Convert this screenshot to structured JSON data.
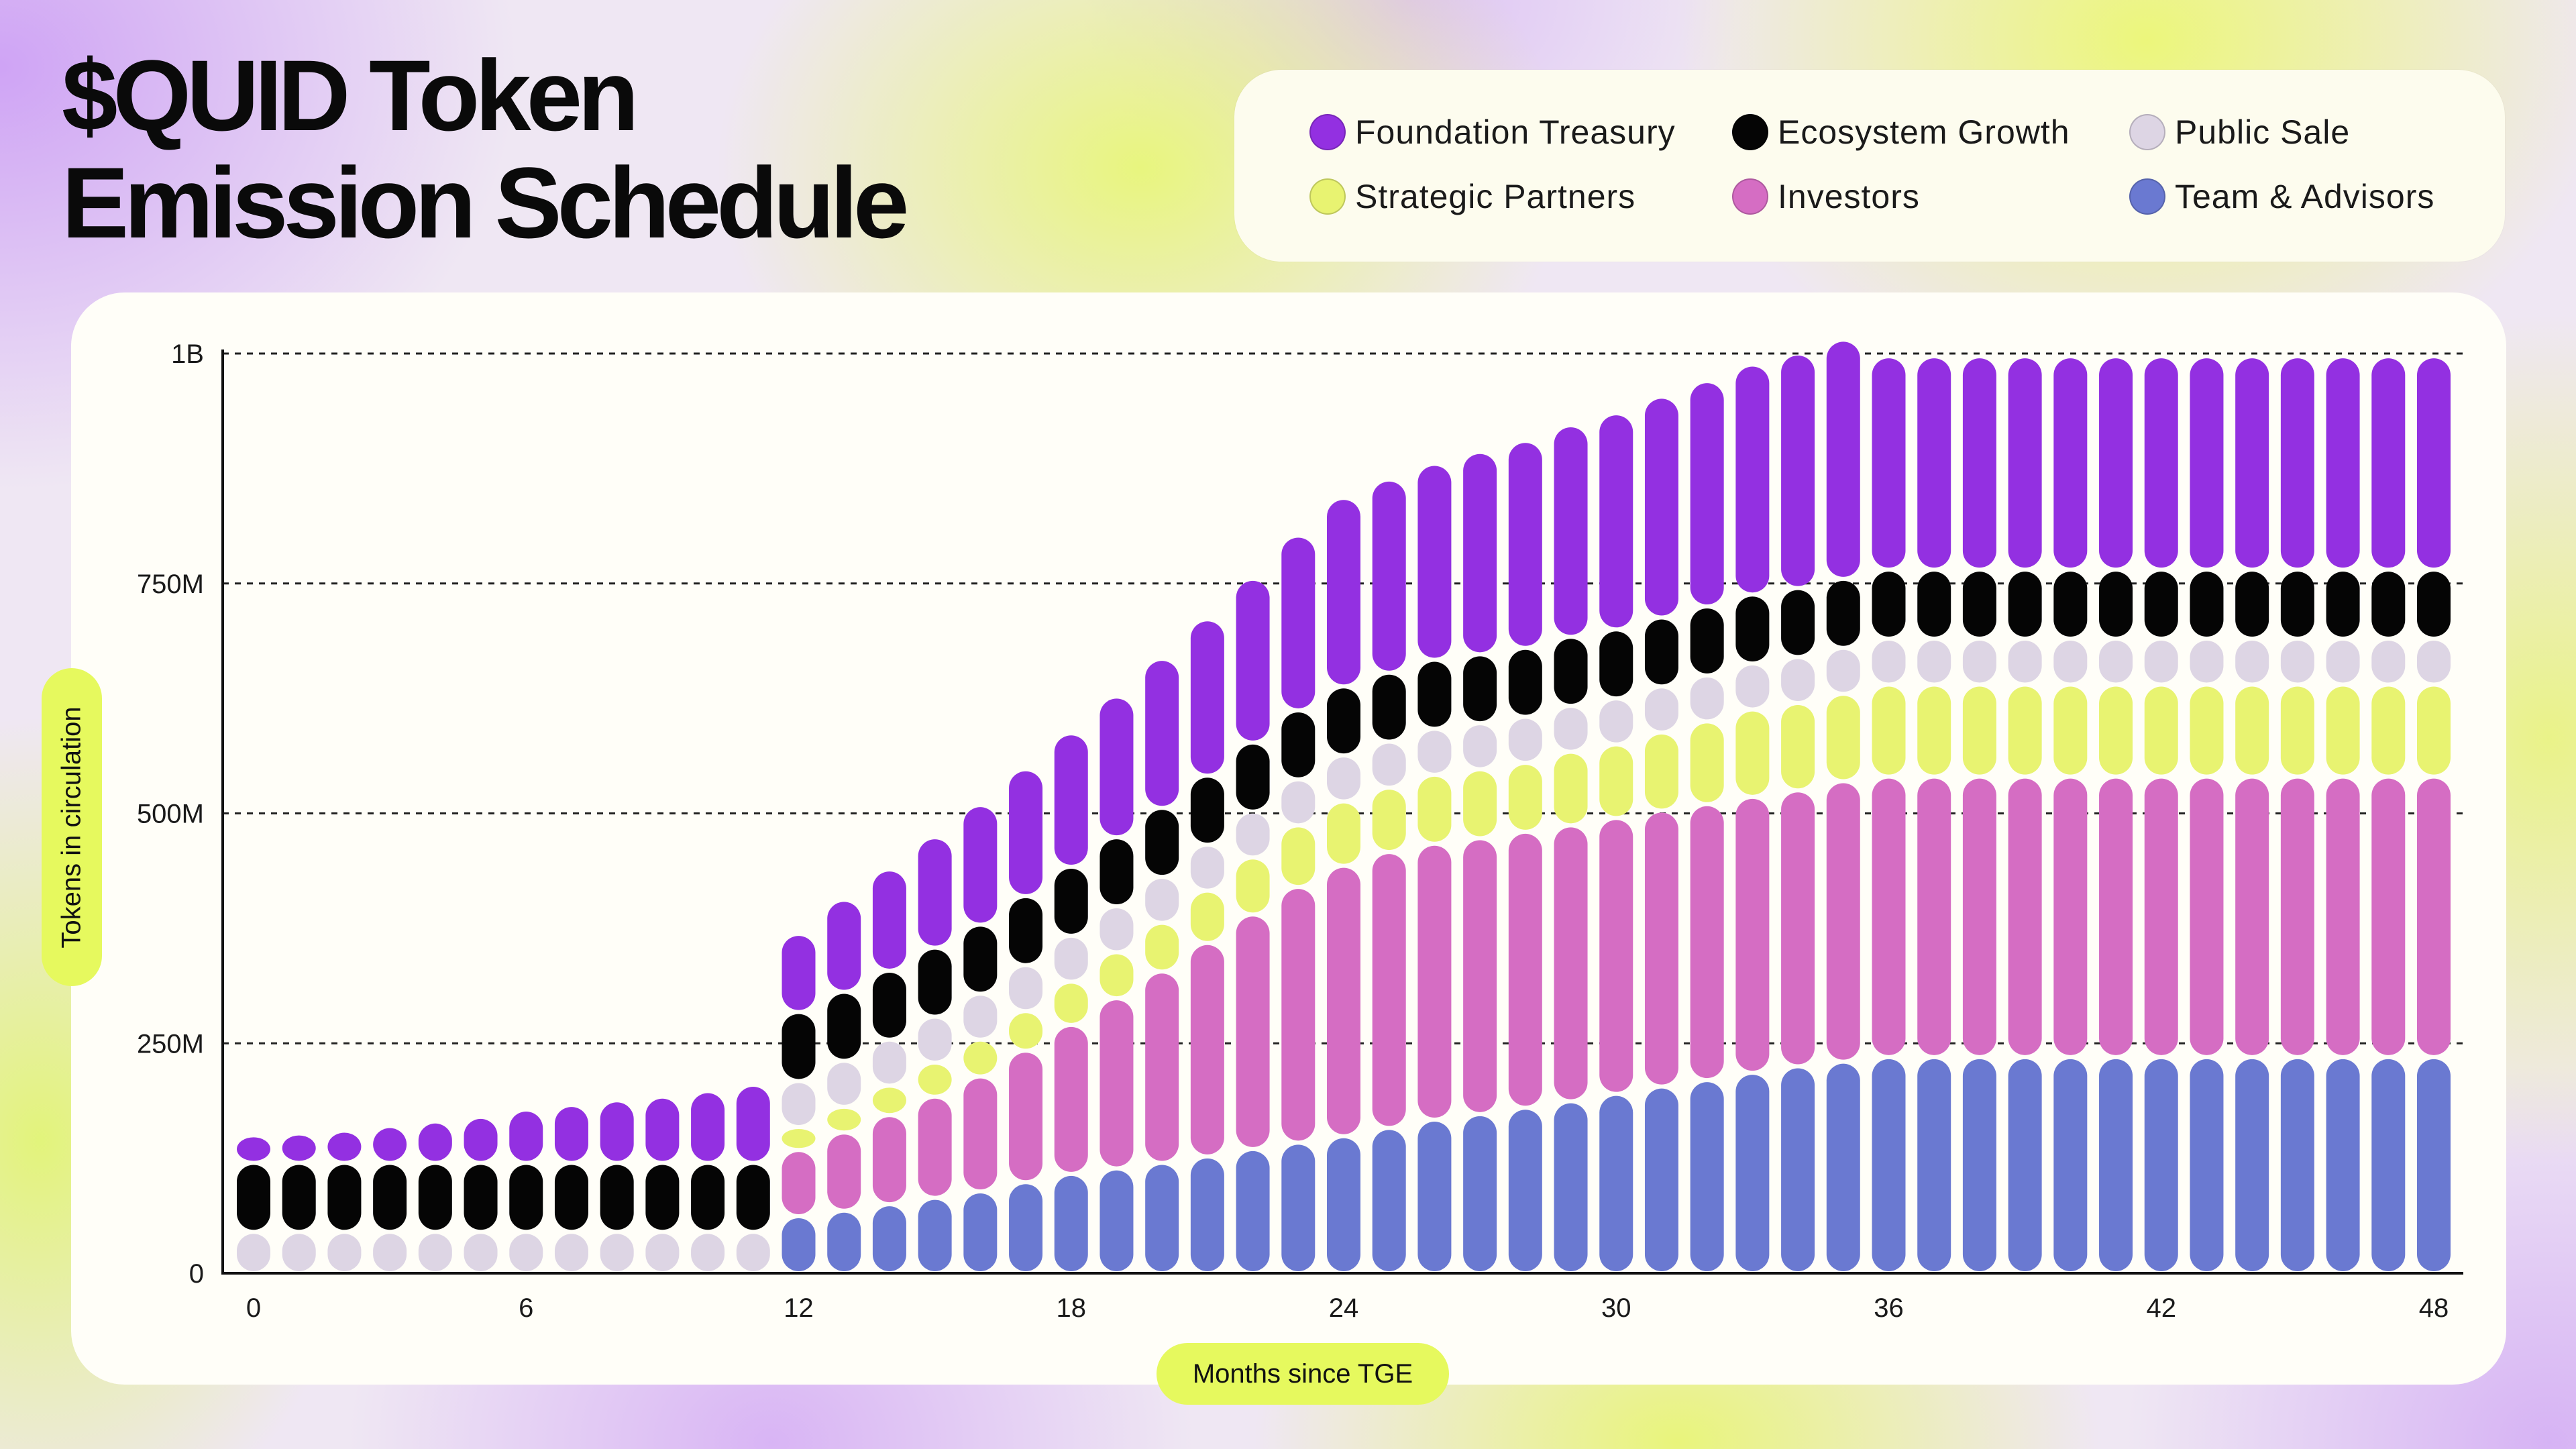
{
  "title_line1": "$QUID Token",
  "title_line2": "Emission Schedule",
  "legend": [
    {
      "label": "Foundation Treasury",
      "color": "#9330e1"
    },
    {
      "label": "Ecosystem Growth",
      "color": "#050505"
    },
    {
      "label": "Public Sale",
      "color": "#ddd5e4"
    },
    {
      "label": "Strategic Partners",
      "color": "#e8f371"
    },
    {
      "label": "Investors",
      "color": "#d56dc3"
    },
    {
      "label": "Team & Advisors",
      "color": "#6a79d1"
    }
  ],
  "chart_data": {
    "type": "bar",
    "stacked": true,
    "title": "$QUID Token Emission Schedule",
    "xlabel": "Months since TGE",
    "ylabel": "Tokens in circulation",
    "ylim": [
      0,
      1000000000
    ],
    "x_ticks": [
      0,
      6,
      12,
      18,
      24,
      30,
      36,
      42,
      48
    ],
    "y_ticks": [
      {
        "value": 0,
        "label": "0"
      },
      {
        "value": 250000000,
        "label": "250M"
      },
      {
        "value": 500000000,
        "label": "500M"
      },
      {
        "value": 750000000,
        "label": "750M"
      },
      {
        "value": 1000000000,
        "label": "1B"
      }
    ],
    "grid": "horizontal dashed",
    "legend_position": "top-right",
    "categories": [
      0,
      1,
      2,
      3,
      4,
      5,
      6,
      7,
      8,
      9,
      10,
      11,
      12,
      13,
      14,
      15,
      16,
      17,
      18,
      19,
      20,
      21,
      22,
      23,
      24,
      25,
      26,
      27,
      28,
      29,
      30,
      31,
      32,
      33,
      34,
      35,
      36,
      37,
      38,
      39,
      40,
      41,
      42,
      43,
      44,
      45,
      46,
      47,
      48
    ],
    "series": [
      {
        "name": "Team & Advisors",
        "color": "#6a79d1",
        "values": [
          0,
          0,
          0,
          0,
          0,
          0,
          0,
          0,
          0,
          0,
          0,
          0,
          62,
          68,
          75,
          82,
          89,
          99,
          108,
          114,
          120,
          127,
          135,
          142,
          149,
          158,
          167,
          173,
          180,
          187,
          195,
          203,
          210,
          218,
          225,
          230,
          235,
          235,
          235,
          235,
          235,
          235,
          235,
          235,
          235,
          235,
          235,
          235,
          235
        ]
      },
      {
        "name": "Investors",
        "color": "#d56dc3",
        "values": [
          0,
          0,
          0,
          0,
          0,
          0,
          0,
          0,
          0,
          0,
          0,
          0,
          72,
          85,
          97,
          110,
          125,
          143,
          162,
          185,
          208,
          232,
          255,
          278,
          294,
          300,
          300,
          300,
          300,
          300,
          300,
          300,
          300,
          300,
          300,
          305,
          305,
          305,
          305,
          305,
          305,
          305,
          305,
          305,
          305,
          305,
          305,
          305,
          305
        ]
      },
      {
        "name": "Strategic Partners",
        "color": "#e8f371",
        "values": [
          0,
          0,
          0,
          0,
          0,
          0,
          0,
          0,
          0,
          0,
          0,
          0,
          25,
          28,
          32,
          37,
          40,
          43,
          47,
          50,
          53,
          57,
          62,
          67,
          70,
          70,
          75,
          75,
          75,
          80,
          80,
          85,
          90,
          95,
          95,
          95,
          100,
          100,
          100,
          100,
          100,
          100,
          100,
          100,
          100,
          100,
          100,
          100,
          100
        ]
      },
      {
        "name": "Public Sale",
        "color": "#ddd5e4",
        "values": [
          45,
          45,
          45,
          45,
          45,
          45,
          45,
          45,
          45,
          45,
          45,
          45,
          50,
          50,
          50,
          50,
          50,
          50,
          50,
          50,
          50,
          50,
          50,
          50,
          50,
          50,
          50,
          50,
          50,
          50,
          50,
          50,
          50,
          50,
          50,
          50,
          50,
          50,
          50,
          50,
          50,
          50,
          50,
          50,
          50,
          50,
          50,
          50,
          50
        ]
      },
      {
        "name": "Ecosystem Growth",
        "color": "#050505",
        "values": [
          75,
          75,
          75,
          75,
          75,
          75,
          75,
          75,
          75,
          75,
          75,
          75,
          75,
          75,
          75,
          75,
          75,
          75,
          75,
          75,
          75,
          75,
          75,
          75,
          75,
          75,
          75,
          75,
          75,
          75,
          75,
          75,
          75,
          75,
          75,
          75,
          75,
          75,
          75,
          75,
          75,
          75,
          75,
          75,
          75,
          75,
          75,
          75,
          75
        ]
      },
      {
        "name": "Foundation Treasury",
        "color": "#9330e1",
        "values": [
          30,
          32,
          35,
          40,
          45,
          50,
          58,
          63,
          68,
          72,
          78,
          85,
          85,
          100,
          110,
          120,
          130,
          138,
          145,
          153,
          162,
          170,
          178,
          190,
          205,
          210,
          213,
          220,
          225,
          230,
          235,
          240,
          245,
          250,
          255,
          260,
          232,
          232,
          232,
          232,
          232,
          232,
          232,
          232,
          232,
          232,
          232,
          232,
          232
        ]
      }
    ],
    "value_unit": "millions"
  },
  "axes": {
    "xlabel": "Months since TGE",
    "ylabel": "Tokens in circulation"
  }
}
